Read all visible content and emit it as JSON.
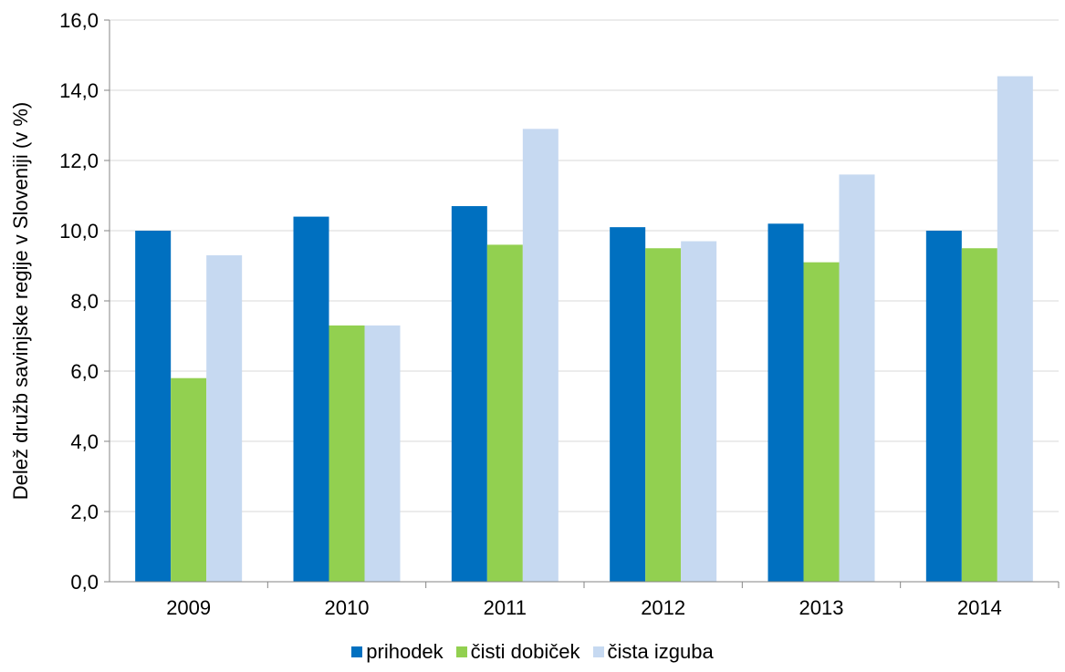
{
  "chart_data": {
    "type": "bar",
    "categories": [
      "2009",
      "2010",
      "2011",
      "2012",
      "2013",
      "2014"
    ],
    "series": [
      {
        "name": "prihodek",
        "color": "#0070C0",
        "values": [
          10.0,
          10.4,
          10.7,
          10.1,
          10.2,
          10.0
        ]
      },
      {
        "name": "čisti dobiček",
        "color": "#92D050",
        "values": [
          5.8,
          7.3,
          9.6,
          9.5,
          9.1,
          9.5
        ]
      },
      {
        "name": "čista izguba",
        "color": "#C6D9F1",
        "values": [
          9.3,
          7.3,
          12.9,
          9.7,
          11.6,
          14.4
        ]
      }
    ],
    "ylabel": "Delež družb savinjske regije v Sloveniji (v %)",
    "ylim": [
      0,
      16
    ],
    "yticks": [
      "0,0",
      "2,0",
      "4,0",
      "6,0",
      "8,0",
      "10,0",
      "12,0",
      "14,0",
      "16,0"
    ],
    "grid": true,
    "legend_position": "bottom"
  }
}
